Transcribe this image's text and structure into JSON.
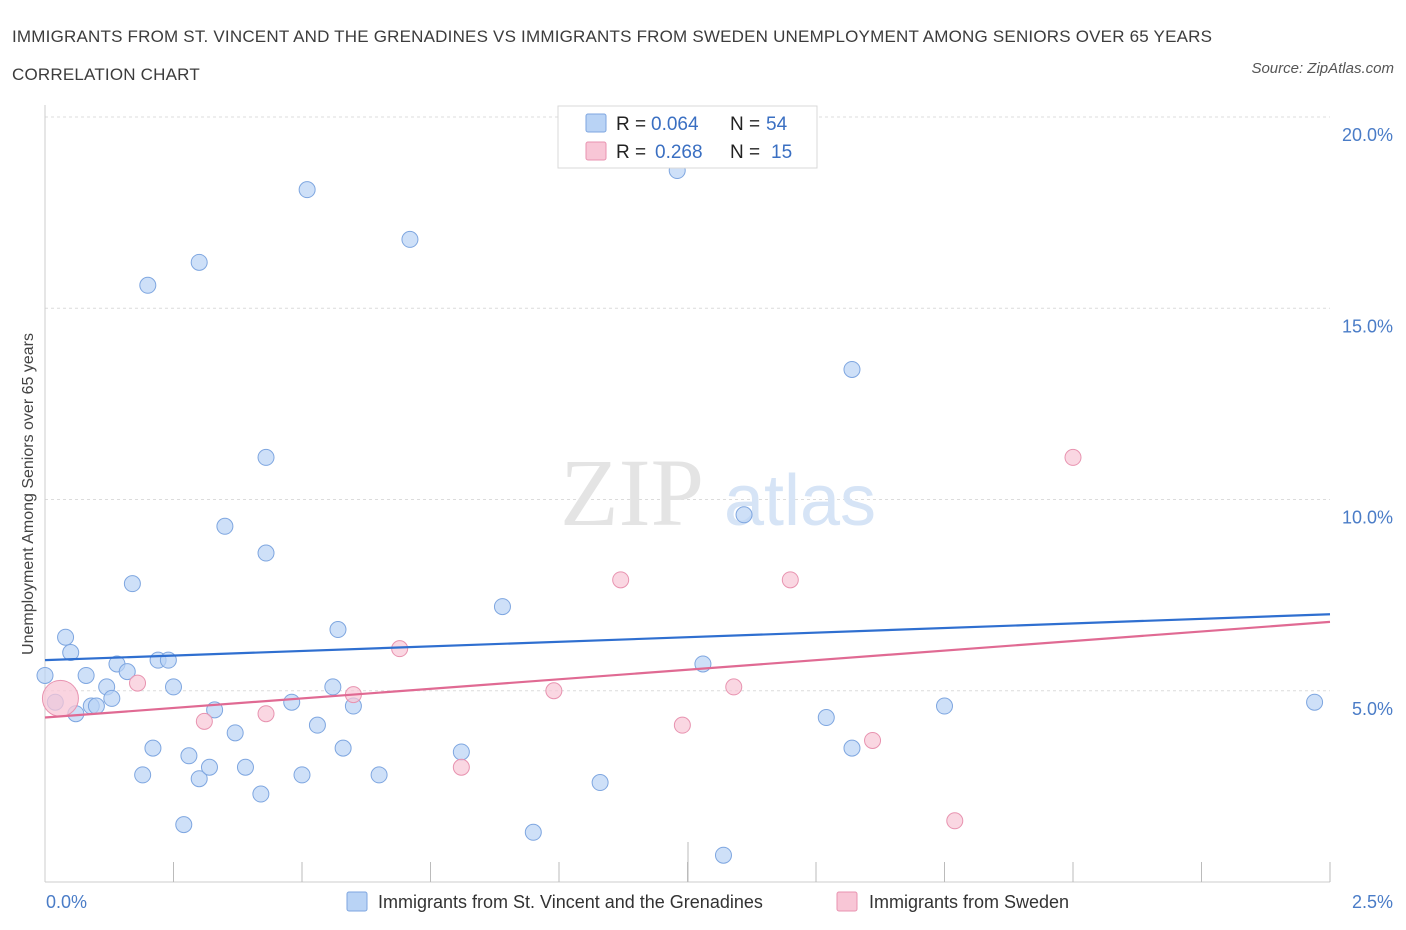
{
  "title": "IMMIGRANTS FROM ST. VINCENT AND THE GRENADINES VS IMMIGRANTS FROM SWEDEN UNEMPLOYMENT AMONG SENIORS OVER 65 YEARS CORRELATION CHART",
  "source": "Source: ZipAtlas.com",
  "watermark": {
    "zip": "ZIP",
    "atlas": "atlas"
  },
  "legend_top": [
    {
      "r_label": "R =",
      "r_value": "0.064",
      "n_label": "N =",
      "n_value": "54",
      "fill": "#b9d3f5",
      "stroke": "#7ea6e0"
    },
    {
      "r_label": "R =",
      "r_value": "0.268",
      "n_label": "N =",
      "n_value": "15",
      "fill": "#f8c6d6",
      "stroke": "#e893b0"
    }
  ],
  "chart_data": {
    "type": "scatter",
    "title": "IMMIGRANTS FROM ST. VINCENT AND THE GRENADINES VS IMMIGRANTS FROM SWEDEN UNEMPLOYMENT AMONG SENIORS OVER 65 YEARS CORRELATION CHART",
    "xlabel": "",
    "ylabel": "Unemployment Among Seniors over 65 years",
    "xlim": [
      0,
      2.5
    ],
    "ylim": [
      0,
      20
    ],
    "x_ticks": [
      {
        "value": 0,
        "label": "0.0%"
      },
      {
        "value": 2.5,
        "label": "2.5%"
      }
    ],
    "y_ticks": [
      {
        "value": 5,
        "label": "5.0%"
      },
      {
        "value": 10,
        "label": "10.0%"
      },
      {
        "value": 15,
        "label": "15.0%"
      },
      {
        "value": 20,
        "label": "20.0%"
      }
    ],
    "grid": true,
    "legend_position": "top-center",
    "series": [
      {
        "name": "Immigrants from St. Vincent and the Grenadines",
        "color": "#b9d3f5",
        "stroke": "#7ea6e0",
        "line_color": "#2f6fd0",
        "trend": [
          [
            0,
            5.8
          ],
          [
            2.5,
            7.0
          ]
        ],
        "points": [
          [
            0.0,
            5.4
          ],
          [
            0.02,
            4.7
          ],
          [
            0.04,
            6.4
          ],
          [
            0.05,
            6.0
          ],
          [
            0.06,
            4.4
          ],
          [
            0.08,
            5.4
          ],
          [
            0.09,
            4.6
          ],
          [
            0.1,
            4.6
          ],
          [
            0.12,
            5.1
          ],
          [
            0.13,
            4.8
          ],
          [
            0.14,
            5.7
          ],
          [
            0.16,
            5.5
          ],
          [
            0.17,
            7.8
          ],
          [
            0.19,
            2.8
          ],
          [
            0.2,
            15.6
          ],
          [
            0.21,
            3.5
          ],
          [
            0.22,
            5.8
          ],
          [
            0.24,
            5.8
          ],
          [
            0.25,
            5.1
          ],
          [
            0.27,
            1.5
          ],
          [
            0.28,
            3.3
          ],
          [
            0.3,
            2.7
          ],
          [
            0.3,
            16.2
          ],
          [
            0.32,
            3.0
          ],
          [
            0.33,
            4.5
          ],
          [
            0.35,
            9.3
          ],
          [
            0.37,
            3.9
          ],
          [
            0.39,
            3.0
          ],
          [
            0.42,
            2.3
          ],
          [
            0.43,
            11.1
          ],
          [
            0.43,
            8.6
          ],
          [
            0.48,
            4.7
          ],
          [
            0.5,
            2.8
          ],
          [
            0.51,
            18.1
          ],
          [
            0.53,
            4.1
          ],
          [
            0.56,
            5.1
          ],
          [
            0.57,
            6.6
          ],
          [
            0.58,
            3.5
          ],
          [
            0.6,
            4.6
          ],
          [
            0.65,
            2.8
          ],
          [
            0.71,
            16.8
          ],
          [
            0.81,
            3.4
          ],
          [
            0.89,
            7.2
          ],
          [
            0.95,
            1.3
          ],
          [
            1.08,
            2.6
          ],
          [
            1.23,
            18.6
          ],
          [
            1.28,
            5.7
          ],
          [
            1.32,
            0.7
          ],
          [
            1.36,
            9.6
          ],
          [
            1.52,
            4.3
          ],
          [
            1.57,
            3.5
          ],
          [
            1.57,
            13.4
          ],
          [
            1.75,
            4.6
          ],
          [
            2.47,
            4.7
          ]
        ]
      },
      {
        "name": "Immigrants from Sweden",
        "color": "#f8c6d6",
        "stroke": "#e893b0",
        "line_color": "#e06a93",
        "trend": [
          [
            0,
            4.3
          ],
          [
            2.5,
            6.8
          ]
        ],
        "points": [
          [
            0.03,
            4.8
          ],
          [
            0.18,
            5.2
          ],
          [
            0.31,
            4.2
          ],
          [
            0.43,
            4.4
          ],
          [
            0.6,
            4.9
          ],
          [
            0.69,
            6.1
          ],
          [
            0.81,
            3.0
          ],
          [
            0.99,
            5.0
          ],
          [
            1.12,
            7.9
          ],
          [
            1.24,
            4.1
          ],
          [
            1.34,
            5.1
          ],
          [
            1.45,
            7.9
          ],
          [
            1.61,
            3.7
          ],
          [
            1.77,
            1.6
          ],
          [
            2.0,
            11.1
          ]
        ]
      }
    ]
  }
}
